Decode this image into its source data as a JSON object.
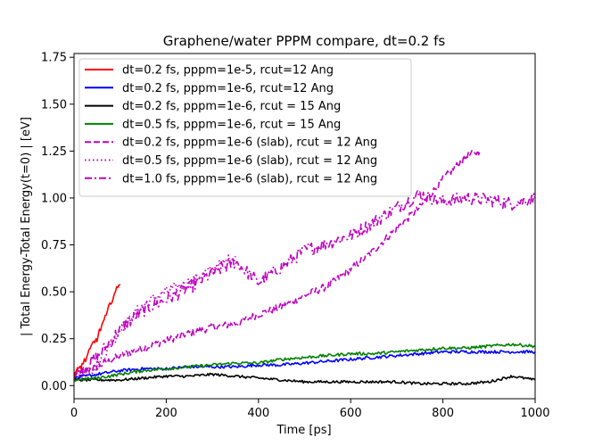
{
  "chart_data": {
    "type": "line",
    "title": "Graphene/water PPPM compare, dt=0.2 fs",
    "xlabel": "Time [ps]",
    "ylabel": "| Total Energy-Total Energy(t=0) | [eV]",
    "xlim": [
      0,
      1000
    ],
    "ylim": [
      -0.07,
      1.77
    ],
    "xticks": [
      0,
      200,
      400,
      600,
      800,
      1000
    ],
    "yticks": [
      0.0,
      0.25,
      0.5,
      0.75,
      1.0,
      1.25,
      1.5,
      1.75
    ],
    "ytick_labels": [
      "0.00",
      "0.25",
      "0.50",
      "0.75",
      "1.00",
      "1.25",
      "1.50",
      "1.75"
    ],
    "grid": false,
    "legend_position": "upper-left",
    "series": [
      {
        "name": "dt=0.2 fs, pppm=1e-5, rcut=12 Ang",
        "color": "#ff0000",
        "style": "solid",
        "x": [
          0,
          10,
          20,
          30,
          40,
          50,
          60,
          70,
          80,
          90,
          100
        ],
        "y": [
          0.05,
          0.09,
          0.12,
          0.16,
          0.22,
          0.25,
          0.32,
          0.37,
          0.45,
          0.5,
          0.54
        ]
      },
      {
        "name": "dt=0.2 fs, pppm=1e-6, rcut=12 Ang",
        "color": "#0000ff",
        "style": "solid",
        "x": [
          0,
          50,
          100,
          150,
          200,
          250,
          300,
          350,
          400,
          450,
          500,
          550,
          600,
          650,
          700,
          750,
          800,
          850,
          900,
          950,
          1000
        ],
        "y": [
          0.04,
          0.06,
          0.08,
          0.09,
          0.09,
          0.1,
          0.1,
          0.1,
          0.11,
          0.11,
          0.12,
          0.13,
          0.14,
          0.15,
          0.16,
          0.17,
          0.18,
          0.18,
          0.18,
          0.18,
          0.18
        ]
      },
      {
        "name": "dt=0.2 fs, pppm=1e-6, rcut = 15 Ang",
        "color": "#000000",
        "style": "solid",
        "x": [
          0,
          50,
          100,
          150,
          200,
          250,
          300,
          350,
          400,
          450,
          500,
          550,
          600,
          650,
          700,
          750,
          800,
          850,
          900,
          950,
          1000
        ],
        "y": [
          0.03,
          0.03,
          0.03,
          0.04,
          0.05,
          0.05,
          0.06,
          0.05,
          0.04,
          0.03,
          0.02,
          0.02,
          0.02,
          0.02,
          0.02,
          0.01,
          0.01,
          0.01,
          0.02,
          0.05,
          0.03
        ]
      },
      {
        "name": "dt=0.5 fs, pppm=1e-6, rcut = 15 Ang",
        "color": "#008000",
        "style": "solid",
        "x": [
          0,
          50,
          100,
          150,
          200,
          250,
          300,
          350,
          400,
          450,
          500,
          550,
          600,
          650,
          700,
          750,
          800,
          850,
          900,
          950,
          1000
        ],
        "y": [
          0.03,
          0.04,
          0.06,
          0.08,
          0.09,
          0.1,
          0.11,
          0.12,
          0.12,
          0.14,
          0.15,
          0.16,
          0.17,
          0.17,
          0.18,
          0.19,
          0.2,
          0.2,
          0.21,
          0.22,
          0.21
        ]
      },
      {
        "name": "dt=0.2 fs, pppm=1e-6 (slab), rcut = 12 Ang",
        "color": "#bf00bf",
        "style": "dashed",
        "x": [
          0,
          50,
          100,
          150,
          200,
          250,
          300,
          350,
          400,
          450,
          500,
          550,
          600,
          650,
          700,
          750,
          800,
          850,
          880
        ],
        "y": [
          0.06,
          0.1,
          0.16,
          0.2,
          0.24,
          0.28,
          0.31,
          0.33,
          0.38,
          0.42,
          0.48,
          0.53,
          0.62,
          0.72,
          0.84,
          0.95,
          1.1,
          1.22,
          1.25
        ]
      },
      {
        "name": "dt=0.5 fs, pppm=1e-6 (slab), rcut = 12 Ang",
        "color": "#bf00bf",
        "style": "dotted",
        "x": [
          0,
          50,
          100,
          150,
          200,
          250,
          300,
          350
        ],
        "y": [
          0.05,
          0.1,
          0.3,
          0.43,
          0.5,
          0.55,
          0.62,
          0.69
        ]
      },
      {
        "name": "dt=1.0 fs, pppm=1e-6 (slab), rcut = 12 Ang",
        "color": "#bf00bf",
        "style": "dashdot",
        "x": [
          0,
          50,
          100,
          150,
          200,
          250,
          300,
          350,
          400,
          450,
          500,
          550,
          600,
          650,
          700,
          750,
          800,
          850,
          900,
          950,
          1000
        ],
        "y": [
          0.05,
          0.15,
          0.3,
          0.4,
          0.46,
          0.52,
          0.6,
          0.66,
          0.55,
          0.63,
          0.72,
          0.76,
          0.8,
          0.87,
          0.95,
          1.02,
          0.98,
          1.0,
          0.99,
          0.97,
          1.0
        ]
      }
    ]
  }
}
